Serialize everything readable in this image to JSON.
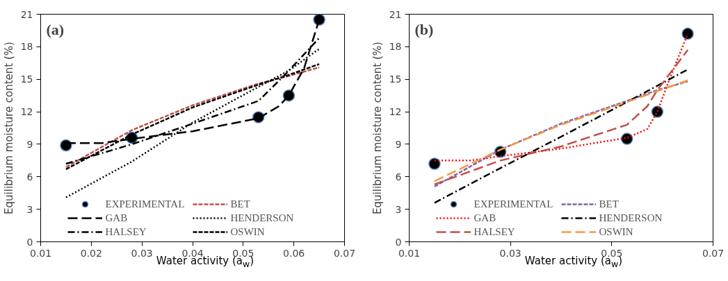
{
  "chart_data": [
    {
      "type": "line",
      "title": "(a)",
      "xlabel": "Water activity (a$_{w}$)",
      "ylabel": "Equilibrium moisture content (%)",
      "xlim": [
        0.01,
        0.07
      ],
      "xticks": [
        0.01,
        0.02,
        0.03,
        0.04,
        0.05,
        0.06,
        0.07
      ],
      "ylim": [
        0,
        21
      ],
      "yticks": [
        0,
        3,
        6,
        9,
        12,
        15,
        18,
        21
      ],
      "grid": false,
      "legend": "bottom",
      "series": [
        {
          "name": "EXPERIMENTAL",
          "type": "scatter",
          "marker": "circle",
          "color": "#000000",
          "x": [
            0.015,
            0.028,
            0.053,
            0.059,
            0.065
          ],
          "values": [
            8.9,
            9.6,
            11.5,
            13.5,
            20.5
          ]
        },
        {
          "name": "BET",
          "color": "#c0504d",
          "line_style": "dashed",
          "x": [
            0.015,
            0.028,
            0.04,
            0.053,
            0.059,
            0.065
          ],
          "values": [
            6.9,
            10.3,
            12.6,
            14.6,
            15.3,
            16.1
          ]
        },
        {
          "name": "GAB",
          "color": "#000000",
          "line_style": "longdash",
          "x": [
            0.015,
            0.022,
            0.028,
            0.04,
            0.053,
            0.057,
            0.059,
            0.062,
            0.065
          ],
          "values": [
            9.1,
            9.1,
            9.5,
            10.2,
            11.4,
            12.5,
            13.5,
            16,
            20.5
          ]
        },
        {
          "name": "HENDERSON",
          "color": "#000000",
          "line_style": "dotted",
          "x": [
            0.015,
            0.028,
            0.04,
            0.053,
            0.059,
            0.065
          ],
          "values": [
            4.1,
            7.4,
            11,
            14.3,
            15.8,
            17.8
          ]
        },
        {
          "name": "HALSEY",
          "color": "#000000",
          "line_style": "dashdot",
          "x": [
            0.015,
            0.028,
            0.04,
            0.053,
            0.058,
            0.065
          ],
          "values": [
            7.2,
            9.0,
            10.9,
            13.0,
            15.3,
            18.8
          ]
        },
        {
          "name": "OSWIN",
          "color": "#000000",
          "line_style": "dashed",
          "x": [
            0.015,
            0.028,
            0.04,
            0.053,
            0.059,
            0.065
          ],
          "values": [
            6.7,
            9.9,
            12.4,
            14.5,
            15.4,
            16.4
          ]
        }
      ]
    },
    {
      "type": "line",
      "title": "(b)",
      "xlabel": "Water activity (a$_{w}$)",
      "ylabel": "Equilibrium moisture content (%)",
      "xlim": [
        0.01,
        0.07
      ],
      "xticks": [
        0.01,
        0.03,
        0.05,
        0.07
      ],
      "ylim": [
        0,
        21
      ],
      "yticks": [
        0,
        3,
        6,
        9,
        12,
        15,
        18,
        21
      ],
      "grid": false,
      "legend": "bottom",
      "series": [
        {
          "name": "EXPERIMENTAL",
          "type": "scatter",
          "marker": "circle",
          "color": "#000000",
          "x": [
            0.015,
            0.028,
            0.053,
            0.059,
            0.065
          ],
          "values": [
            7.2,
            8.3,
            9.5,
            12.0,
            19.2
          ]
        },
        {
          "name": "BET",
          "color": "#8064a2",
          "line_style": "dashed",
          "x": [
            0.015,
            0.028,
            0.04,
            0.053,
            0.059,
            0.065
          ],
          "values": [
            5.1,
            8.5,
            10.9,
            13.0,
            14.0,
            14.8
          ]
        },
        {
          "name": "GAB",
          "color": "#ff0000",
          "line_style": "dotted",
          "x": [
            0.015,
            0.022,
            0.028,
            0.04,
            0.053,
            0.057,
            0.059,
            0.061,
            0.065
          ],
          "values": [
            7.5,
            7.5,
            7.9,
            8.6,
            9.6,
            10.4,
            12.0,
            14.5,
            19.2
          ]
        },
        {
          "name": "HENDERSON",
          "color": "#000000",
          "line_style": "dashdot",
          "x": [
            0.015,
            0.028,
            0.04,
            0.053,
            0.059,
            0.065
          ],
          "values": [
            3.6,
            6.8,
            9.7,
            12.9,
            14.4,
            15.9
          ]
        },
        {
          "name": "HALSEY",
          "color": "#c0504d",
          "line_style": "longdash",
          "x": [
            0.015,
            0.028,
            0.04,
            0.053,
            0.057,
            0.059,
            0.065
          ],
          "values": [
            5.3,
            7.5,
            8.8,
            10.8,
            12.5,
            14.0,
            17.7
          ]
        },
        {
          "name": "OSWIN",
          "color": "#f79646",
          "line_style": "longdash",
          "x": [
            0.015,
            0.028,
            0.04,
            0.053,
            0.059,
            0.065
          ],
          "values": [
            5.6,
            8.5,
            10.8,
            12.9,
            13.9,
            14.9
          ]
        }
      ]
    }
  ]
}
